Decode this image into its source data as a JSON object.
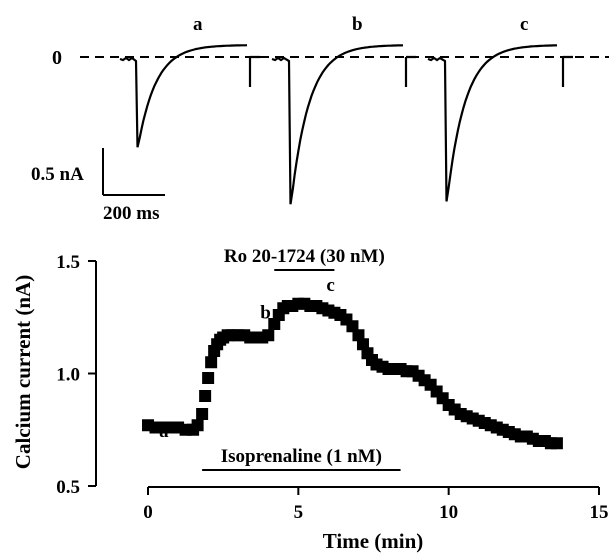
{
  "traces": {
    "labels": [
      "a",
      "b",
      "c"
    ],
    "zero_label": "0",
    "scale_current_label": "0.5 nA",
    "scale_time_label": "200 ms",
    "peaks_nA": [
      -0.95,
      -1.55,
      -1.52
    ]
  },
  "chart_data": {
    "type": "scatter",
    "xlabel": "Time (min)",
    "ylabel": "Calcium current (nA)",
    "xlim": [
      0,
      15
    ],
    "ylim": [
      0.5,
      1.5
    ],
    "xticks": [
      "0",
      "5",
      "10",
      "15"
    ],
    "yticks": [
      "0.5",
      "1.0",
      "1.5"
    ],
    "marker": "square",
    "series": [
      {
        "x": [
          0,
          0.25,
          0.5,
          0.75,
          1.0,
          1.25,
          1.5,
          1.65,
          1.8,
          1.9,
          2.0,
          2.1,
          2.2,
          2.3,
          2.4,
          2.5,
          2.65,
          2.8,
          3.0,
          3.2,
          3.4,
          3.6,
          3.8,
          4.0,
          4.2,
          4.35,
          4.5,
          4.65,
          4.8,
          5.0,
          5.2,
          5.4,
          5.6,
          5.8,
          6.0,
          6.2,
          6.4,
          6.6,
          6.8,
          7.0,
          7.15,
          7.3,
          7.45,
          7.6,
          7.8,
          8.0,
          8.2,
          8.4,
          8.6,
          8.8,
          9.0,
          9.2,
          9.4,
          9.6,
          9.8,
          10.0,
          10.2,
          10.4,
          10.6,
          10.8,
          11.0,
          11.2,
          11.4,
          11.6,
          11.8,
          12.0,
          12.2,
          12.4,
          12.6,
          12.8,
          13.0,
          13.2,
          13.4,
          13.6
        ],
        "y": [
          0.77,
          0.76,
          0.76,
          0.76,
          0.76,
          0.75,
          0.75,
          0.77,
          0.82,
          0.9,
          0.98,
          1.05,
          1.1,
          1.13,
          1.15,
          1.16,
          1.17,
          1.17,
          1.17,
          1.17,
          1.16,
          1.16,
          1.16,
          1.17,
          1.22,
          1.26,
          1.29,
          1.3,
          1.3,
          1.31,
          1.31,
          1.3,
          1.3,
          1.29,
          1.28,
          1.27,
          1.26,
          1.24,
          1.21,
          1.17,
          1.13,
          1.09,
          1.06,
          1.04,
          1.03,
          1.02,
          1.02,
          1.02,
          1.01,
          1.01,
          0.99,
          0.97,
          0.95,
          0.92,
          0.89,
          0.86,
          0.84,
          0.82,
          0.81,
          0.8,
          0.79,
          0.78,
          0.77,
          0.76,
          0.75,
          0.74,
          0.73,
          0.72,
          0.72,
          0.71,
          0.7,
          0.7,
          0.69,
          0.69
        ]
      }
    ],
    "point_labels": [
      {
        "text": "a",
        "x": 1.3,
        "y": 0.75
      },
      {
        "text": "b",
        "x": 4.2,
        "y": 1.2
      },
      {
        "text": "c",
        "x": 6.2,
        "y": 1.27
      }
    ],
    "bars": [
      {
        "label": "Ro 20-1724 (30 nM)",
        "x_start": 4.2,
        "x_end": 6.2
      },
      {
        "label": "Isoprenaline (1 nM)",
        "x_start": 1.8,
        "x_end": 8.4
      }
    ]
  }
}
